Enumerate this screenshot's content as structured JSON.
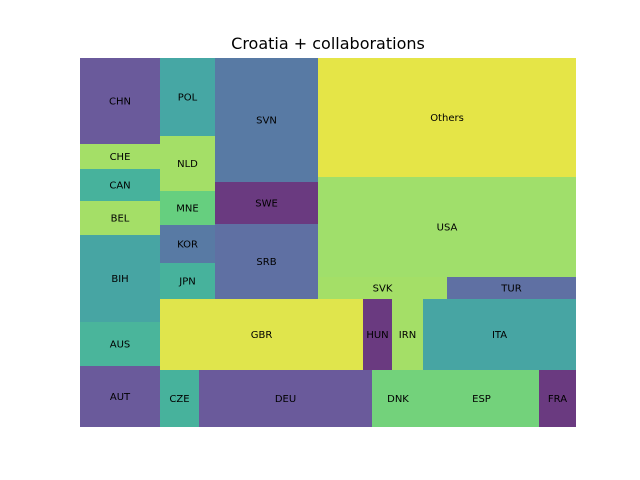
{
  "chart_data": {
    "type": "treemap",
    "title": "Croatia + collaborations",
    "items": [
      {
        "label": "CHN",
        "color": "#6a5a9b"
      },
      {
        "label": "CHE",
        "color": "#a4df67"
      },
      {
        "label": "CAN",
        "color": "#47b29c"
      },
      {
        "label": "BEL",
        "color": "#a4df67"
      },
      {
        "label": "BIH",
        "color": "#47a5a3"
      },
      {
        "label": "AUS",
        "color": "#4ab59b"
      },
      {
        "label": "AUT",
        "color": "#6a5a9b"
      },
      {
        "label": "POL",
        "color": "#46a7a4"
      },
      {
        "label": "NLD",
        "color": "#a4df67"
      },
      {
        "label": "MNE",
        "color": "#66cf7f"
      },
      {
        "label": "KOR",
        "color": "#587aa4"
      },
      {
        "label": "JPN",
        "color": "#47b29c"
      },
      {
        "label": "SVN",
        "color": "#587aa4"
      },
      {
        "label": "SWE",
        "color": "#6a3a80"
      },
      {
        "label": "SRB",
        "color": "#5f70a3"
      },
      {
        "label": "Others",
        "color": "#e5e547"
      },
      {
        "label": "USA",
        "color": "#a0df6b"
      },
      {
        "label": "SVK",
        "color": "#a4df67"
      },
      {
        "label": "TUR",
        "color": "#5f70a3"
      },
      {
        "label": "GBR",
        "color": "#e0e54c"
      },
      {
        "label": "HUN",
        "color": "#6a3a80"
      },
      {
        "label": "IRN",
        "color": "#a4df67"
      },
      {
        "label": "ITA",
        "color": "#47a5a3"
      },
      {
        "label": "CZE",
        "color": "#47b29c"
      },
      {
        "label": "DEU",
        "color": "#6a5a9b"
      },
      {
        "label": "DNK",
        "color": "#73d27b"
      },
      {
        "label": "ESP",
        "color": "#73d27b"
      },
      {
        "label": "FRA",
        "color": "#6a3a80"
      }
    ]
  }
}
